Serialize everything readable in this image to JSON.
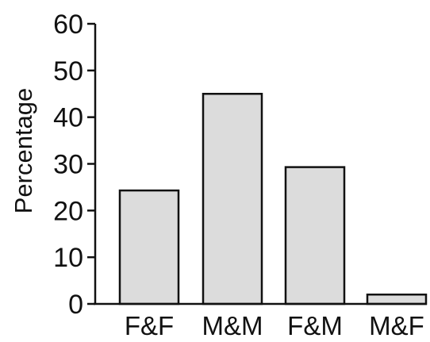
{
  "chart_data": {
    "type": "bar",
    "categories": [
      "F&F",
      "M&M",
      "F&M",
      "M&F"
    ],
    "values": [
      24.3,
      45.0,
      29.3,
      2.0
    ],
    "ylabel": "Percentage",
    "xlabel": "",
    "ylim": [
      0,
      60
    ],
    "yticks": [
      0,
      10,
      20,
      30,
      40,
      50,
      60
    ],
    "grid": false,
    "bar_color": "#dcdcdc",
    "edge_color": "#111111"
  }
}
